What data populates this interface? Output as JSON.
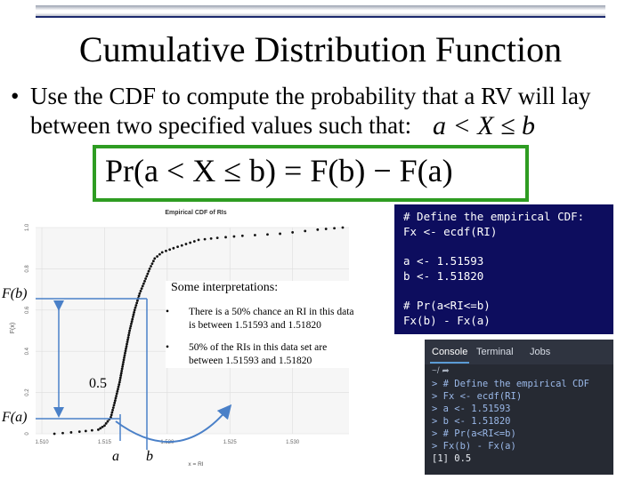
{
  "slide": {
    "title": "Cumulative Distribution Function",
    "bullet": "Use the CDF to compute the probability that a RV will lay between two specified values such that:",
    "inline_math": "a < X ≤ b",
    "formula": "Pr(a < X ≤ b) = F(b) − F(a)"
  },
  "code_panel": {
    "lines": [
      "# Define the empirical CDF:",
      "Fx <- ecdf(RI)",
      "",
      "a <- 1.51593",
      "b <- 1.51820",
      "",
      "# Pr(a<RI<=b)",
      "Fx(b) - Fx(a)"
    ]
  },
  "console": {
    "tabs": [
      "Console",
      "Terminal",
      "Jobs"
    ],
    "toolbar": "~/ ➦",
    "lines": [
      "> # Define the empirical CDF",
      "> Fx <- ecdf(RI)",
      "> a <- 1.51593",
      "> b <- 1.51820",
      "> # Pr(a<RI<=b)",
      "> Fx(b) - Fx(a)",
      "[1] 0.5"
    ]
  },
  "annotations": {
    "Fb": "F(b)",
    "Fa": "F(a)",
    "half": "0.5",
    "a": "a",
    "b": "b",
    "heading": "Some interpretations:",
    "item1": "There is a 50% chance an RI in this data is between 1.51593 and 1.51820",
    "item2": "50% of the RIs in this data set are between 1.51593 and 1.51820",
    "bullet_char": "•"
  },
  "chart_data": {
    "type": "line",
    "title": "Empirical CDF of RIs",
    "xlabel": "x = RI",
    "ylabel": "F(x)",
    "xlim": [
      1.5095,
      1.5345
    ],
    "ylim": [
      0,
      1.0
    ],
    "x_ticks": [
      "1.510",
      "1.515",
      "1.520",
      "1.525",
      "1.530"
    ],
    "y_ticks": [
      "0",
      "0.2",
      "0.4",
      "0.6",
      "0.8",
      "1.0"
    ],
    "grid": true,
    "series": [
      {
        "x": [
          1.511,
          1.513,
          1.5145,
          1.515,
          1.5155,
          1.5158,
          1.5162,
          1.5166,
          1.517,
          1.5174,
          1.5178,
          1.5182,
          1.5186,
          1.519,
          1.5196,
          1.5205,
          1.5215,
          1.5225,
          1.524,
          1.526,
          1.529,
          1.532,
          1.534
        ],
        "y": [
          0.0,
          0.01,
          0.02,
          0.04,
          0.08,
          0.15,
          0.25,
          0.38,
          0.5,
          0.6,
          0.68,
          0.74,
          0.8,
          0.85,
          0.88,
          0.9,
          0.92,
          0.94,
          0.95,
          0.96,
          0.97,
          0.99,
          1.0
        ]
      }
    ]
  },
  "colors": {
    "accent_green": "#2e9c22",
    "arrow_blue": "#4a80c8",
    "panel_navy": "#0d0d5e"
  }
}
